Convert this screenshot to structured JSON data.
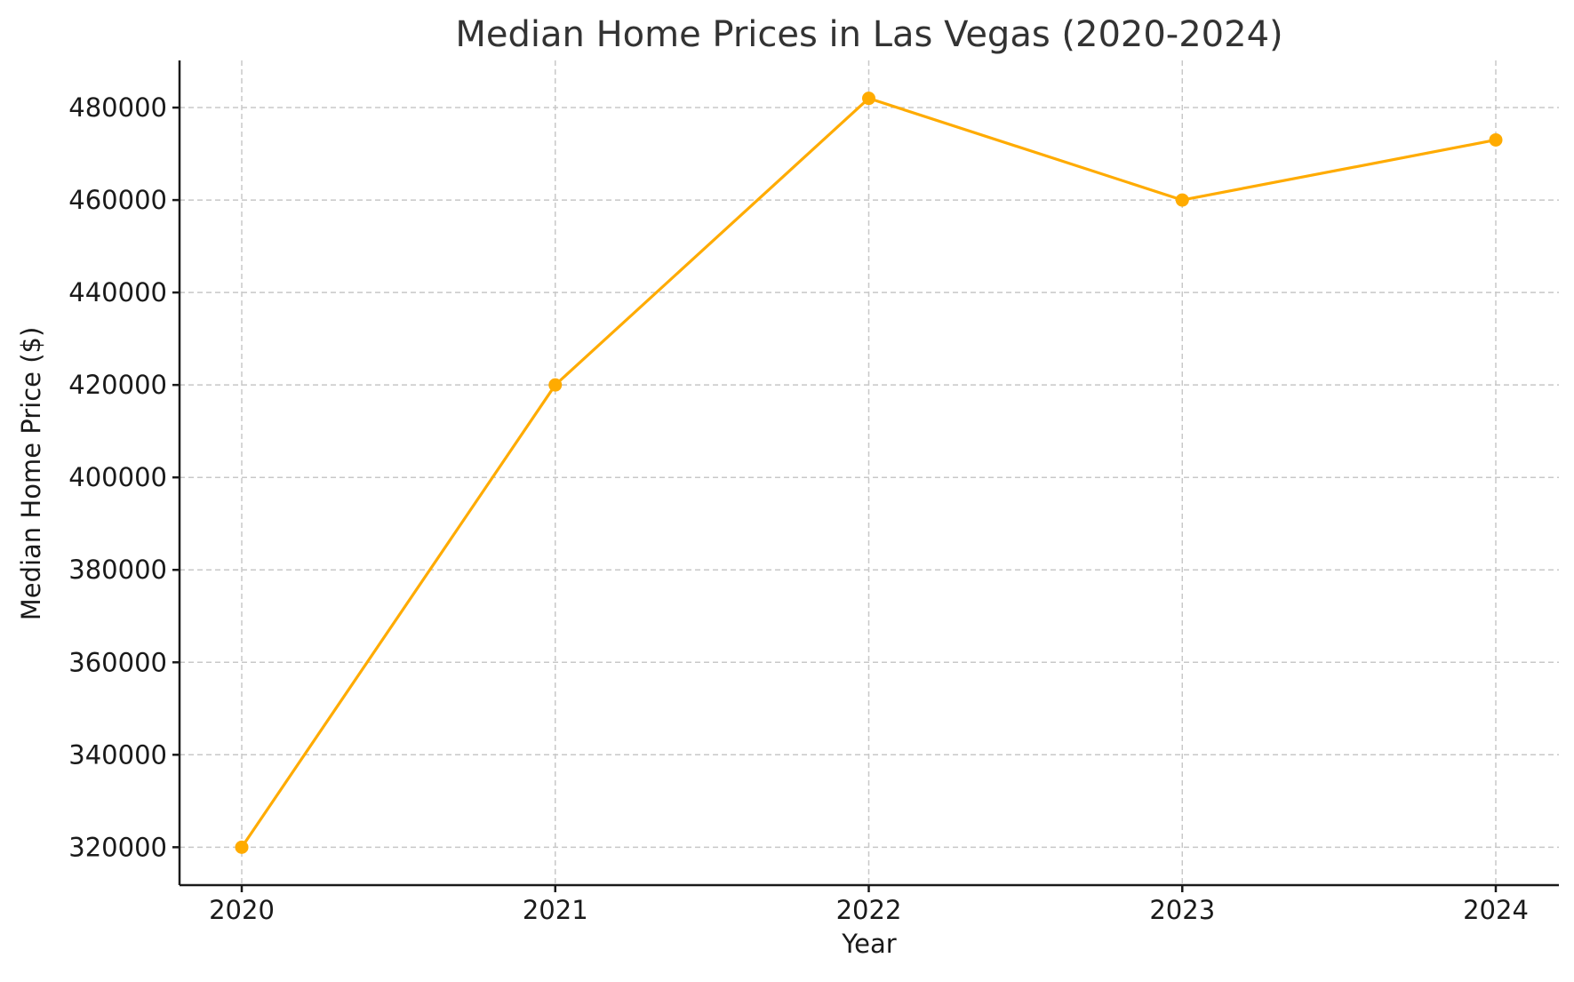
{
  "chart_data": {
    "type": "line",
    "title": "Median Home Prices in Las Vegas (2020-2024)",
    "xlabel": "Year",
    "ylabel": "Median Home Price ($)",
    "categories": [
      "2020",
      "2021",
      "2022",
      "2023",
      "2024"
    ],
    "series": [
      {
        "values": [
          320000,
          420000,
          482000,
          460000,
          473000
        ],
        "color": "#FFAB00",
        "marker": "circle"
      }
    ],
    "yticks": [
      320000,
      340000,
      360000,
      380000,
      400000,
      420000,
      440000,
      460000,
      480000
    ],
    "ylim": [
      311800,
      490200
    ],
    "grid": true,
    "legend": "none"
  }
}
